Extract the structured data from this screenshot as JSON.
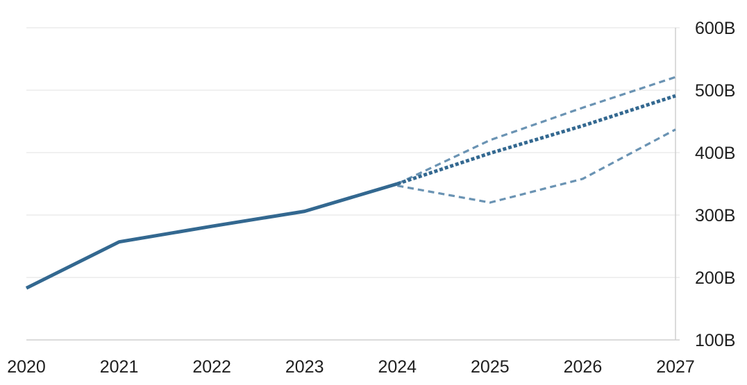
{
  "chart_data": {
    "type": "line",
    "title": "",
    "xlabel": "",
    "ylabel": "",
    "x": [
      2020,
      2021,
      2022,
      2023,
      2024,
      2025,
      2026,
      2027
    ],
    "x_tick_labels": [
      "2020",
      "2021",
      "2022",
      "2023",
      "2024",
      "2025",
      "2026",
      "2027"
    ],
    "y_tick_labels": [
      "100B",
      "200B",
      "300B",
      "400B",
      "500B",
      "600B"
    ],
    "y_ticks": [
      100,
      200,
      300,
      400,
      500,
      600
    ],
    "ylim": [
      100,
      600
    ],
    "xlim": [
      2020,
      2027
    ],
    "y_axis_side": "right",
    "grid": "horizontal",
    "series": [
      {
        "role": "actual",
        "style": "solid",
        "color": "#336890",
        "x": [
          2020,
          2021,
          2022,
          2023,
          2024
        ],
        "y": [
          183,
          257,
          282,
          306,
          350
        ]
      },
      {
        "role": "forecast",
        "style": "dotted",
        "color": "#336890",
        "x": [
          2024,
          2025,
          2026,
          2027
        ],
        "y": [
          350,
          399,
          443,
          491
        ]
      },
      {
        "role": "upper-bound",
        "style": "dashed",
        "color": "#6a93b3",
        "x": [
          2024,
          2025,
          2026,
          2027
        ],
        "y": [
          350,
          420,
          472,
          521
        ]
      },
      {
        "role": "lower-bound",
        "style": "dashed",
        "color": "#6a93b3",
        "x": [
          2024,
          2025,
          2026,
          2027
        ],
        "y": [
          347,
          320,
          358,
          437
        ]
      }
    ],
    "colors": {
      "grid": "#e6e6e6",
      "axis": "#cfcfcf",
      "text": "#1f1f1f"
    }
  }
}
